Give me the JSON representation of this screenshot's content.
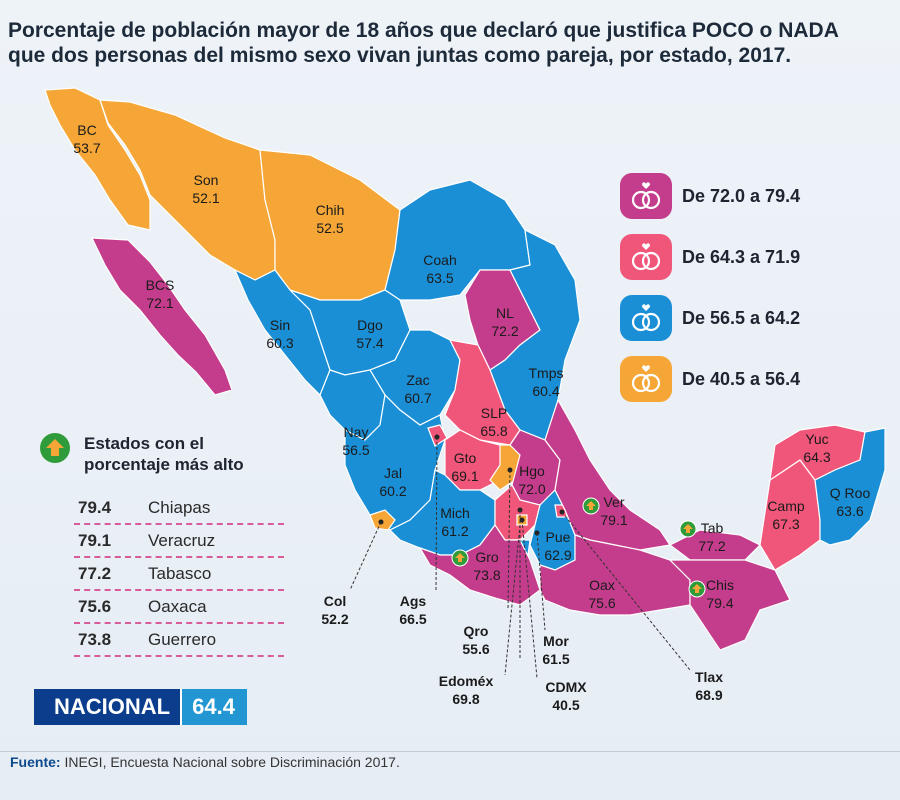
{
  "title_line1": "Porcentaje de población mayor de 18 años que declaró que justifica POCO o NADA",
  "title_line2": "que dos personas del mismo sexo vivan juntas como pareja, por estado, 2017.",
  "colors": {
    "range1": "#c43c8c",
    "range2": "#f0557a",
    "range3": "#1a8fd6",
    "range4": "#f5a637",
    "nacional_dark": "#0b3d8c",
    "nacional_light": "#2196d3",
    "arrow_green": "#2f9b3a"
  },
  "legend": [
    {
      "label": "De 72.0 a 79.4",
      "color": "#c43c8c",
      "icon": "wedding-rings-icon"
    },
    {
      "label": "De 64.3 a 71.9",
      "color": "#f0557a",
      "icon": "wedding-rings-icon"
    },
    {
      "label": "De 56.5 a 64.2",
      "color": "#1a8fd6",
      "icon": "wedding-rings-icon"
    },
    {
      "label": "De 40.5 a 56.4",
      "color": "#f5a637",
      "icon": "wedding-rings-icon"
    }
  ],
  "top_states": {
    "heading_line1": "Estados con el",
    "heading_line2": "porcentaje más alto",
    "icon": "up-arrow-icon",
    "rows": [
      {
        "value": "79.4",
        "name": "Chiapas"
      },
      {
        "value": "79.1",
        "name": "Veracruz"
      },
      {
        "value": "77.2",
        "name": "Tabasco"
      },
      {
        "value": "75.6",
        "name": "Oaxaca"
      },
      {
        "value": "73.8",
        "name": "Guerrero"
      }
    ]
  },
  "nacional": {
    "label": "NACIONAL",
    "value": "64.4"
  },
  "source": {
    "label": "Fuente:",
    "text": " INEGI, Encuesta Nacional sobre Discriminación 2017."
  },
  "states": [
    {
      "abbr": "BC",
      "value": "53.7",
      "range": 4
    },
    {
      "abbr": "Son",
      "value": "52.1",
      "range": 4
    },
    {
      "abbr": "Chih",
      "value": "52.5",
      "range": 4
    },
    {
      "abbr": "BCS",
      "value": "72.1",
      "range": 1
    },
    {
      "abbr": "Coah",
      "value": "63.5",
      "range": 3
    },
    {
      "abbr": "Sin",
      "value": "60.3",
      "range": 3
    },
    {
      "abbr": "Dgo",
      "value": "57.4",
      "range": 3
    },
    {
      "abbr": "NL",
      "value": "72.2",
      "range": 1
    },
    {
      "abbr": "Tmps",
      "value": "60.4",
      "range": 3
    },
    {
      "abbr": "Zac",
      "value": "60.7",
      "range": 3
    },
    {
      "abbr": "SLP",
      "value": "65.8",
      "range": 2
    },
    {
      "abbr": "Nay",
      "value": "56.5",
      "range": 3
    },
    {
      "abbr": "Jal",
      "value": "60.2",
      "range": 3
    },
    {
      "abbr": "Gto",
      "value": "69.1",
      "range": 2
    },
    {
      "abbr": "Hgo",
      "value": "72.0",
      "range": 1
    },
    {
      "abbr": "Mich",
      "value": "61.2",
      "range": 3
    },
    {
      "abbr": "Gro",
      "value": "73.8",
      "range": 1
    },
    {
      "abbr": "Pue",
      "value": "62.9",
      "range": 3
    },
    {
      "abbr": "Ver",
      "value": "79.1",
      "range": 1
    },
    {
      "abbr": "Oax",
      "value": "75.6",
      "range": 1
    },
    {
      "abbr": "Chis",
      "value": "79.4",
      "range": 1
    },
    {
      "abbr": "Tab",
      "value": "77.2",
      "range": 1
    },
    {
      "abbr": "Camp",
      "value": "67.3",
      "range": 2
    },
    {
      "abbr": "Yuc",
      "value": "64.3",
      "range": 2
    },
    {
      "abbr": "Q Roo",
      "value": "63.6",
      "range": 3
    },
    {
      "abbr": "Col",
      "value": "52.2",
      "range": 4
    },
    {
      "abbr": "Ags",
      "value": "66.5",
      "range": 2
    },
    {
      "abbr": "Qro",
      "value": "55.6",
      "range": 4
    },
    {
      "abbr": "Edoméx",
      "value": "69.8",
      "range": 2
    },
    {
      "abbr": "Mor",
      "value": "61.5",
      "range": 3
    },
    {
      "abbr": "CDMX",
      "value": "40.5",
      "range": 4
    },
    {
      "abbr": "Tlax",
      "value": "68.9",
      "range": 2
    }
  ]
}
